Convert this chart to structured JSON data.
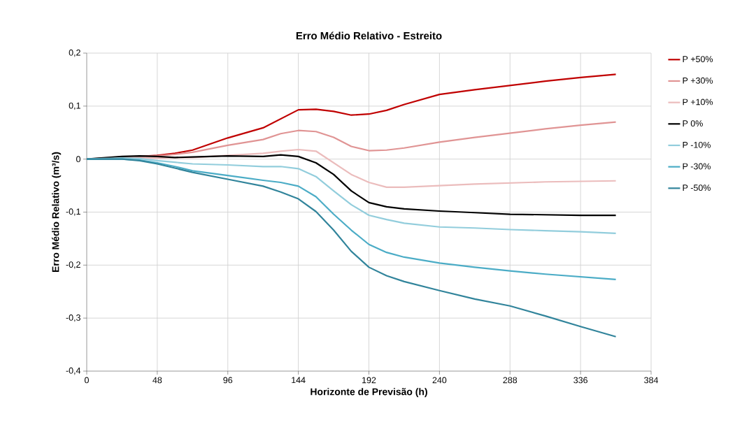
{
  "chart_data": {
    "type": "line",
    "title": "Erro Médio Relativo - Estreito",
    "xlabel": "Horizonte de Previsão (h)",
    "ylabel": "Erro Médio Relativo  (m³/s)",
    "x": [
      0,
      24,
      36,
      48,
      60,
      72,
      96,
      120,
      132,
      144,
      156,
      168,
      180,
      192,
      204,
      216,
      240,
      264,
      288,
      312,
      336,
      360
    ],
    "series": [
      {
        "name": "P +50%",
        "color": "#c00000",
        "values": [
          null,
          null,
          0.005,
          0.007,
          0.011,
          0.017,
          0.04,
          0.059,
          0.076,
          0.093,
          0.094,
          0.09,
          0.083,
          0.085,
          0.092,
          0.103,
          0.122,
          0.131,
          0.139,
          0.147,
          0.154,
          0.16
        ]
      },
      {
        "name": "P +30%",
        "color": "#e09494",
        "values": [
          0,
          0.004,
          0.005,
          0.006,
          0.009,
          0.013,
          0.026,
          0.037,
          0.048,
          0.054,
          0.052,
          0.041,
          0.024,
          0.016,
          0.017,
          0.021,
          0.032,
          0.041,
          0.049,
          0.057,
          0.064,
          0.07
        ]
      },
      {
        "name": "P +10%",
        "color": "#ebbcbc",
        "values": [
          0,
          0.003,
          0.003,
          0.002,
          0.003,
          0.003,
          0.007,
          0.011,
          0.015,
          0.018,
          0.015,
          -0.007,
          -0.029,
          -0.044,
          -0.053,
          -0.053,
          -0.05,
          -0.047,
          -0.045,
          -0.043,
          -0.042,
          -0.041
        ]
      },
      {
        "name": "P  0%",
        "color": "#000000",
        "values": [
          0,
          0.005,
          0.006,
          0.005,
          0.003,
          0.004,
          0.006,
          0.005,
          0.008,
          0.005,
          -0.007,
          -0.029,
          -0.06,
          -0.082,
          -0.09,
          -0.094,
          -0.098,
          -0.101,
          -0.104,
          -0.105,
          -0.106,
          -0.106
        ]
      },
      {
        "name": "P -10%",
        "color": "#92cddc",
        "values": [
          0,
          0.002,
          0.001,
          -0.003,
          -0.006,
          -0.009,
          -0.011,
          -0.014,
          -0.014,
          -0.018,
          -0.033,
          -0.06,
          -0.086,
          -0.106,
          -0.114,
          -0.121,
          -0.128,
          -0.13,
          -0.133,
          -0.135,
          -0.137,
          -0.14
        ]
      },
      {
        "name": "P -30%",
        "color": "#4bacc6",
        "values": [
          0,
          0,
          -0.002,
          -0.007,
          -0.014,
          -0.022,
          -0.031,
          -0.04,
          -0.044,
          -0.051,
          -0.071,
          -0.104,
          -0.134,
          -0.161,
          -0.176,
          -0.185,
          -0.196,
          -0.204,
          -0.211,
          -0.217,
          -0.222,
          -0.227
        ]
      },
      {
        "name": "P -50%",
        "color": "#31849b",
        "values": [
          0,
          0,
          -0.003,
          -0.009,
          -0.017,
          -0.025,
          -0.038,
          -0.051,
          -0.062,
          -0.075,
          -0.099,
          -0.134,
          -0.174,
          -0.204,
          -0.22,
          -0.231,
          -0.248,
          -0.264,
          -0.277,
          -0.296,
          -0.316,
          -0.335
        ]
      }
    ],
    "xlim": [
      0,
      384
    ],
    "xticks": [
      0,
      48,
      96,
      144,
      192,
      240,
      288,
      336,
      384
    ],
    "ylim": [
      -0.4,
      0.2
    ],
    "yticks": [
      {
        "value": -0.4,
        "label": "-0,4"
      },
      {
        "value": -0.3,
        "label": "-0,3"
      },
      {
        "value": -0.2,
        "label": "-0,2"
      },
      {
        "value": -0.1,
        "label": "-0,1"
      },
      {
        "value": 0,
        "label": "0"
      },
      {
        "value": 0.1,
        "label": "0,1"
      },
      {
        "value": 0.2,
        "label": "0,2"
      }
    ],
    "grid": true,
    "legend": "right",
    "line_style": "solid"
  }
}
